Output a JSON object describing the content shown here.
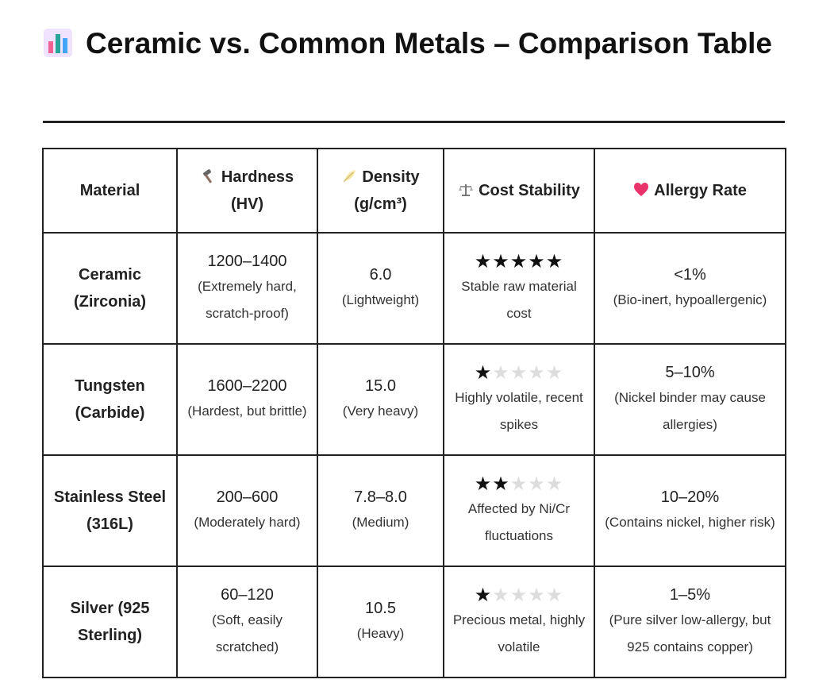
{
  "page": {
    "title": "Ceramic vs. Common Metals – Comparison Table",
    "title_icon": "bar-chart-icon"
  },
  "table": {
    "headers": {
      "material": "Material",
      "hardness": "Hardness (HV)",
      "density": "Density (g/cm³)",
      "cost": "Cost Stability",
      "allergy": "Allergy Rate"
    },
    "header_icons": {
      "hardness": "hammer-icon",
      "density": "feather-icon",
      "cost": "scale-icon",
      "allergy": "heart-icon"
    },
    "rows": [
      {
        "material": "Ceramic (Zirconia)",
        "hardness": "1200–1400",
        "hardness_note": "(Extremely hard, scratch-proof)",
        "density": "6.0",
        "density_note": "(Lightweight)",
        "cost_rating": 5,
        "cost_note": "Stable raw material cost",
        "allergy": "<1%",
        "allergy_note": "(Bio-inert, hypoallergenic)"
      },
      {
        "material": "Tungsten (Carbide)",
        "hardness": "1600–2200",
        "hardness_note": "(Hardest, but brittle)",
        "density": "15.0",
        "density_note": "(Very heavy)",
        "cost_rating": 1,
        "cost_note": "Highly volatile, recent spikes",
        "allergy": "5–10%",
        "allergy_note": "(Nickel binder may cause allergies)"
      },
      {
        "material": "Stainless Steel (316L)",
        "hardness": "200–600",
        "hardness_note": "(Moderately hard)",
        "density": "7.8–8.0",
        "density_note": "(Medium)",
        "cost_rating": 2,
        "cost_note": "Affected by Ni/Cr fluctuations",
        "allergy": "10–20%",
        "allergy_note": "(Contains nickel, higher risk)"
      },
      {
        "material": "Silver (925 Sterling)",
        "hardness": "60–120",
        "hardness_note": "(Soft, easily scratched)",
        "density": "10.5",
        "density_note": "(Heavy)",
        "cost_rating": 1,
        "cost_note": "Precious metal, highly volatile",
        "allergy": "1–5%",
        "allergy_note": "(Pure silver low-allergy, but 925 contains copper)"
      }
    ]
  },
  "colors": {
    "heart": "#e8336b",
    "chart_pink": "#f06292",
    "chart_teal": "#26a69a",
    "chart_blue": "#42a5f5",
    "chart_bg": "#efe3ff"
  }
}
